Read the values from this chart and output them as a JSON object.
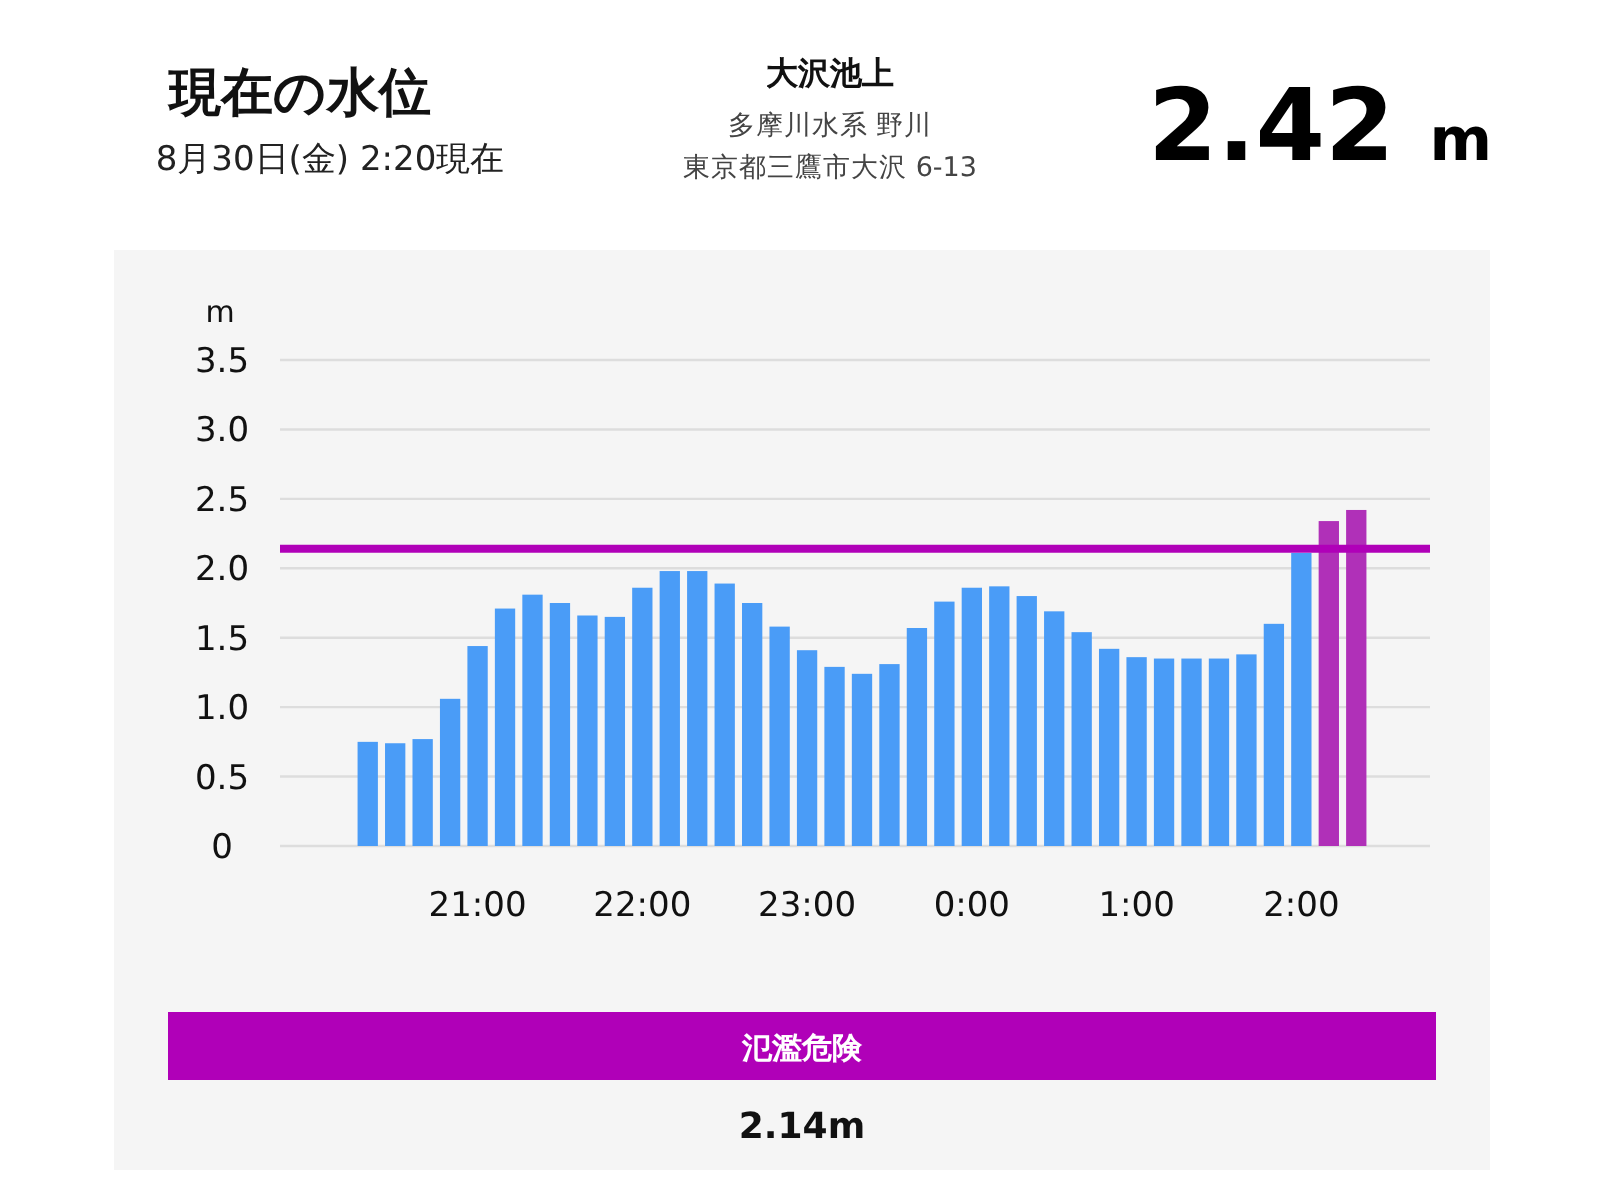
{
  "chart_data": {
    "type": "bar",
    "title": "現在の水位",
    "subtitle": "8月30日(金) 2:20現在",
    "ylabel": "m",
    "categories": [
      null,
      null,
      null,
      null,
      "21:00",
      null,
      null,
      null,
      null,
      null,
      "22:00",
      null,
      null,
      null,
      null,
      null,
      "23:00",
      null,
      null,
      null,
      null,
      null,
      "0:00",
      null,
      null,
      null,
      null,
      null,
      "1:00",
      null,
      null,
      null,
      null,
      null,
      "2:00",
      null,
      null
    ],
    "values": [
      0.75,
      0.74,
      0.77,
      1.06,
      1.44,
      1.71,
      1.81,
      1.75,
      1.66,
      1.65,
      1.86,
      1.98,
      1.98,
      1.89,
      1.75,
      1.58,
      1.41,
      1.29,
      1.24,
      1.31,
      1.57,
      1.76,
      1.86,
      1.87,
      1.8,
      1.69,
      1.54,
      1.42,
      1.36,
      1.35,
      1.35,
      1.35,
      1.38,
      1.6,
      2.11,
      2.34,
      2.42
    ],
    "colors": [
      "#4a9cf7",
      "#4a9cf7",
      "#4a9cf7",
      "#4a9cf7",
      "#4a9cf7",
      "#4a9cf7",
      "#4a9cf7",
      "#4a9cf7",
      "#4a9cf7",
      "#4a9cf7",
      "#4a9cf7",
      "#4a9cf7",
      "#4a9cf7",
      "#4a9cf7",
      "#4a9cf7",
      "#4a9cf7",
      "#4a9cf7",
      "#4a9cf7",
      "#4a9cf7",
      "#4a9cf7",
      "#4a9cf7",
      "#4a9cf7",
      "#4a9cf7",
      "#4a9cf7",
      "#4a9cf7",
      "#4a9cf7",
      "#4a9cf7",
      "#4a9cf7",
      "#4a9cf7",
      "#4a9cf7",
      "#4a9cf7",
      "#4a9cf7",
      "#4a9cf7",
      "#4a9cf7",
      "#4a9cf7",
      "#b030b8",
      "#b030b8"
    ],
    "ylim": [
      0,
      3.5
    ],
    "yticks": [
      0,
      0.5,
      {
        "value": 1,
        "label": "1.0"
      },
      1.5,
      {
        "value": 2,
        "label": "2.0"
      },
      2.5,
      {
        "value": 3,
        "label": "3.0"
      },
      3.5
    ],
    "grid": "y",
    "ref_lines": [
      {
        "axis": "y",
        "value": 2.14,
        "color": "#b000b8"
      }
    ],
    "annotations": [
      "大沢池上",
      "多摩川水系 野川",
      "東京都三鷹市大沢 6-13",
      "2.42 m",
      "2.14m",
      "氾濫危険"
    ]
  }
}
